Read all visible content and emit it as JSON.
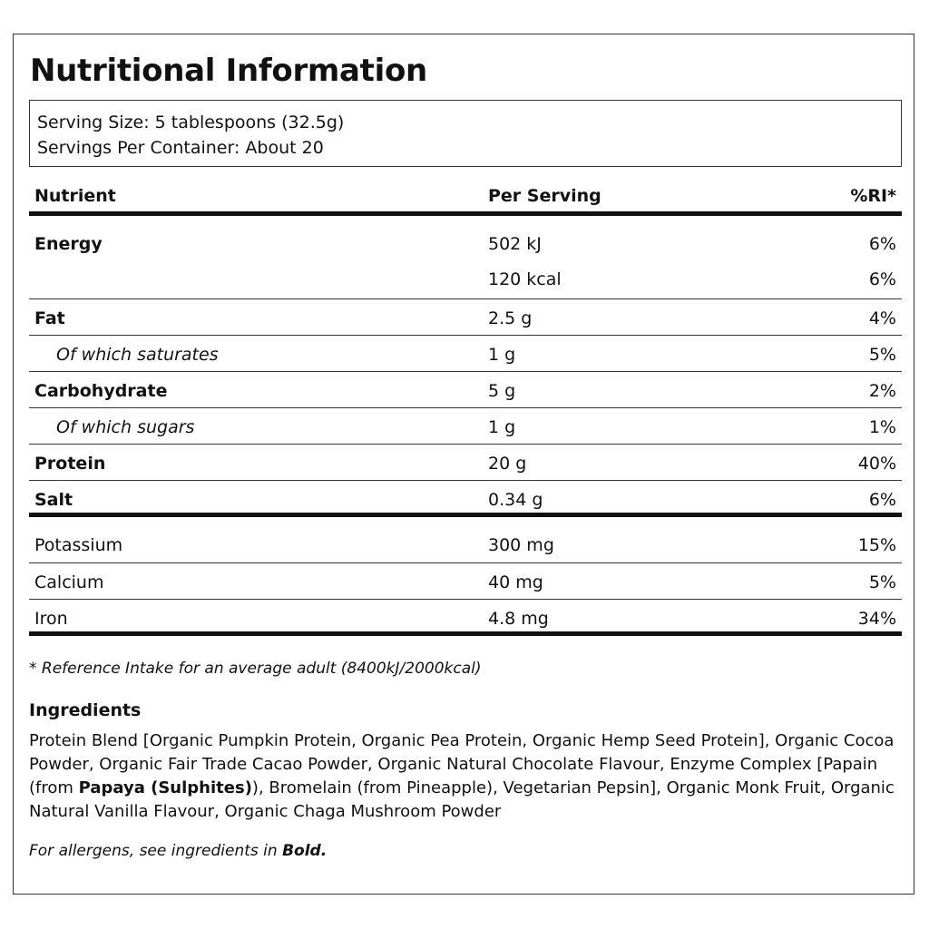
{
  "title": "Nutritional Information",
  "serving": {
    "size": "Serving Size: 5 tablespoons (32.5g)",
    "per_container": "Servings Per Container: About 20"
  },
  "table": {
    "headers": {
      "nutrient": "Nutrient",
      "per_serving": "Per Serving",
      "ri": "%RI*"
    },
    "energy": {
      "name": "Energy",
      "kj": "502 kJ",
      "kj_ri": "6%",
      "kcal": "120 kcal",
      "kcal_ri": "6%"
    },
    "rows": [
      {
        "name": "Fat",
        "value": "2.5 g",
        "ri": "4%"
      },
      {
        "name": "Of which saturates",
        "value": "1 g",
        "ri": "5%"
      },
      {
        "name": "Carbohydrate",
        "value": "5 g",
        "ri": "2%"
      },
      {
        "name": "Of which sugars",
        "value": "1 g",
        "ri": "1%"
      },
      {
        "name": "Protein",
        "value": "20 g",
        "ri": "40%"
      },
      {
        "name": "Salt",
        "value": "0.34 g",
        "ri": "6%"
      }
    ],
    "minerals": [
      {
        "name": "Potassium",
        "value": "300 mg",
        "ri": "15%"
      },
      {
        "name": "Calcium",
        "value": "40 mg",
        "ri": "5%"
      },
      {
        "name": "Iron",
        "value": "4.8 mg",
        "ri": "34%"
      }
    ]
  },
  "footnote": "* Reference Intake for an average adult (8400kJ/2000kcal)",
  "ingredients": {
    "title": "Ingredients",
    "part1": "Protein Blend [Organic Pumpkin Protein, Organic Pea Protein, Organic Hemp Seed Protein], Organic Cocoa Powder, Organic Fair Trade Cacao Powder, Organic Natural Chocolate Flavour, Enzyme Complex [Papain (from ",
    "allergen_bold": "Papaya (Sulphites)",
    "part2": "), Bromelain (from Pineapple), Vegetarian Pepsin], Organic Monk Fruit, Organic Natural Vanilla Flavour, Organic Chaga Mushroom Powder"
  },
  "allergen_note": {
    "prefix": "For allergens, see ingredients in ",
    "bold": "Bold."
  }
}
